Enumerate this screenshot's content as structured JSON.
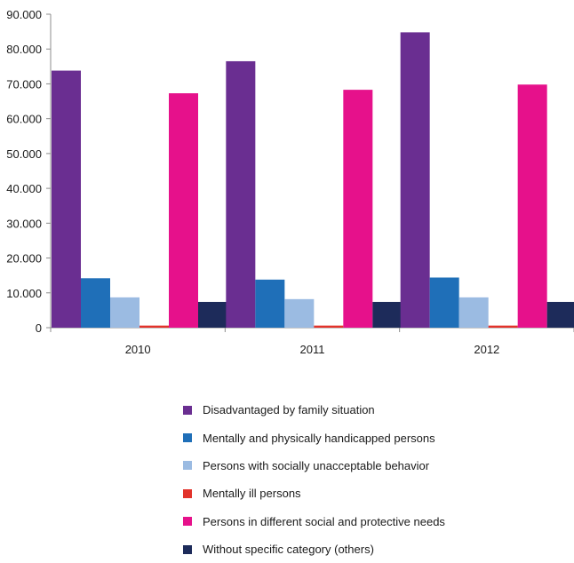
{
  "chart_data": {
    "type": "bar",
    "categories": [
      "2010",
      "2011",
      "2012"
    ],
    "y_ticks": [
      "0",
      "10.000",
      "20.000",
      "30.000",
      "40.000",
      "50.000",
      "60.000",
      "70.000",
      "80.000",
      "90.000"
    ],
    "ylim": [
      0,
      90000
    ],
    "grid": false,
    "legend_position": "bottom",
    "series": [
      {
        "name": "Disadvantaged by family situation",
        "color": "#6a2e91",
        "values": [
          73800,
          76500,
          84800
        ]
      },
      {
        "name": "Mentally and physically handicapped persons",
        "color": "#1f6fb8",
        "values": [
          14200,
          13800,
          14400
        ]
      },
      {
        "name": "Persons with socially unacceptable behavior",
        "color": "#9bbbe2",
        "values": [
          8700,
          8200,
          8700
        ]
      },
      {
        "name": "Mentally ill persons",
        "color": "#e2332b",
        "values": [
          600,
          600,
          600
        ]
      },
      {
        "name": "Persons in different social and protective needs",
        "color": "#e6118b",
        "values": [
          67300,
          68300,
          69800
        ]
      },
      {
        "name": "Without specific category (others)",
        "color": "#1d2b5a",
        "values": [
          7400,
          7400,
          7400
        ]
      }
    ]
  }
}
